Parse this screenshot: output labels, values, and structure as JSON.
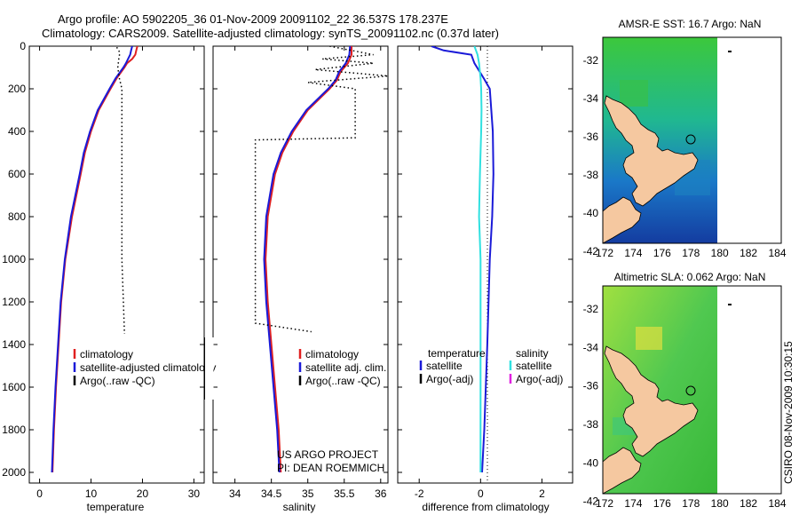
{
  "title": {
    "line1": "Argo profile: AO 5902205_36 01-Nov-2009 20091102_22 36.537S 178.237E",
    "line2": "Climatology: CARS2009. Satellite-adjusted climatology: synTS_20091102.nc (0.37d later)"
  },
  "colors": {
    "clim": "#e02020",
    "sat": "#1a1ad8",
    "argo": "#000000",
    "sal_sat": "#30e0e0",
    "sal_argo": "#e020e0",
    "land": "#f5c8a0"
  },
  "chart_data": [
    {
      "id": "temperature",
      "type": "line",
      "xlabel": "temperature",
      "xlim": [
        -2,
        32
      ],
      "ylim": [
        0,
        2050
      ],
      "xticks": [
        0,
        10,
        20,
        30
      ],
      "yticks": [
        0,
        200,
        400,
        600,
        800,
        1000,
        1200,
        1400,
        1600,
        1800,
        2000
      ],
      "legend": [
        "climatology",
        "satellite-adjusted climatology",
        "Argo(..raw -QC)"
      ],
      "series": [
        {
          "name": "climatology",
          "depth": [
            0,
            20,
            40,
            60,
            80,
            100,
            150,
            200,
            300,
            400,
            500,
            600,
            800,
            1000,
            1200,
            1400,
            1600,
            1800,
            2000
          ],
          "values": [
            19,
            18.8,
            18.6,
            18,
            17,
            16.5,
            15,
            13.8,
            11.5,
            10,
            8.8,
            8,
            6.3,
            5,
            4.2,
            3.7,
            3.2,
            2.8,
            2.5
          ]
        },
        {
          "name": "satellite-adjusted climatology",
          "depth": [
            0,
            20,
            40,
            60,
            80,
            100,
            150,
            200,
            300,
            400,
            500,
            600,
            800,
            1000,
            1200,
            1400,
            1600,
            1800,
            2000
          ],
          "values": [
            18,
            17.8,
            17.6,
            17.2,
            16.8,
            16.3,
            14.8,
            13.6,
            11.3,
            9.8,
            8.6,
            7.8,
            6.1,
            4.9,
            4.1,
            3.6,
            3.1,
            2.7,
            2.4
          ]
        },
        {
          "name": "Argo(..raw -QC)",
          "depth": [
            5,
            30,
            60,
            100,
            150,
            200,
            400,
            600,
            800,
            1000,
            1200,
            1350
          ],
          "values": [
            15,
            15.6,
            15.4,
            15.2,
            15.5,
            16,
            16,
            16,
            16,
            16,
            16.3,
            16.5
          ]
        }
      ]
    },
    {
      "id": "salinity",
      "type": "line",
      "xlabel": "salinity",
      "xlim": [
        33.7,
        36.1
      ],
      "ylim": [
        0,
        2050
      ],
      "xticks": [
        34,
        34.5,
        35,
        35.5,
        36
      ],
      "legend": [
        "climatology",
        "satellite adj. clim.",
        "Argo(..raw -QC)"
      ],
      "series": [
        {
          "name": "climatology",
          "depth": [
            0,
            40,
            80,
            120,
            160,
            200,
            300,
            400,
            500,
            600,
            800,
            1000,
            1200,
            1400,
            1600,
            1800,
            2000
          ],
          "values": [
            35.6,
            35.6,
            35.55,
            35.45,
            35.4,
            35.3,
            35.0,
            34.8,
            34.65,
            34.55,
            34.45,
            34.42,
            34.45,
            34.5,
            34.55,
            34.6,
            34.63
          ]
        },
        {
          "name": "satellite adj. clim.",
          "depth": [
            0,
            40,
            80,
            120,
            160,
            200,
            300,
            400,
            500,
            600,
            800,
            1000,
            1200,
            1400,
            1600,
            1800,
            2000
          ],
          "values": [
            35.58,
            35.57,
            35.52,
            35.43,
            35.38,
            35.28,
            34.98,
            34.78,
            34.63,
            34.53,
            34.43,
            34.4,
            34.43,
            34.48,
            34.53,
            34.58,
            34.61
          ]
        },
        {
          "name": "Argo(..raw -QC)",
          "depth": [
            0,
            40,
            60,
            80,
            110,
            140,
            170,
            200,
            300,
            400,
            430,
            440,
            1300,
            1340
          ],
          "values": [
            35.3,
            35.9,
            35.2,
            35.9,
            35.1,
            36.1,
            35.0,
            35.65,
            35.65,
            35.65,
            35.65,
            34.28,
            34.28,
            35.05
          ]
        }
      ]
    },
    {
      "id": "difference",
      "type": "line",
      "xlabel": "difference from climatology",
      "xlim": [
        -2.7,
        3
      ],
      "ylim": [
        0,
        2050
      ],
      "xticks": [
        -2,
        0,
        2
      ],
      "legend_temp_title": "temperature",
      "legend_sal_title": "salinity",
      "legend_temp": [
        "satellite",
        "Argo(-adj)"
      ],
      "legend_sal": [
        "satellite",
        "Argo(-adj)"
      ],
      "series": [
        {
          "name": "temperature satellite",
          "depth": [
            0,
            20,
            40,
            80,
            150,
            200,
            300,
            400,
            600,
            800,
            1000,
            1400,
            1800,
            2000
          ],
          "values": [
            -1.6,
            -1.2,
            -0.3,
            -0.2,
            0.1,
            0.3,
            0.35,
            0.4,
            0.42,
            0.38,
            0.3,
            0.22,
            0.12,
            0.05
          ]
        },
        {
          "name": "salinity satellite",
          "depth": [
            0,
            40,
            80,
            150,
            200,
            300,
            400,
            600,
            800,
            1000,
            1400,
            1800,
            2000
          ],
          "values": [
            -0.2,
            -0.1,
            -0.05,
            0,
            0.02,
            0.03,
            0.02,
            -0.02,
            -0.05,
            0,
            0,
            0,
            0
          ]
        }
      ]
    }
  ],
  "maps": [
    {
      "title": "AMSR-E SST: 16.7 Argo: NaN",
      "xticks": [
        "172",
        "174",
        "176",
        "178",
        "180",
        "182",
        "184"
      ],
      "yticks": [
        "-32",
        "-34",
        "-36",
        "-38",
        "-40",
        "-42"
      ]
    },
    {
      "title": "Altimetric SLA: 0.062 Argo: NaN",
      "xticks": [
        "172",
        "174",
        "176",
        "178",
        "180",
        "182",
        "184"
      ],
      "yticks": [
        "-32",
        "-34",
        "-36",
        "-38",
        "-40",
        "-42"
      ]
    }
  ],
  "credit": {
    "line1": "US ARGO PROJECT",
    "line2": "PI: DEAN ROEMMICH"
  },
  "timestamp": "CSIRO 08-Nov-2009 10:30:15"
}
